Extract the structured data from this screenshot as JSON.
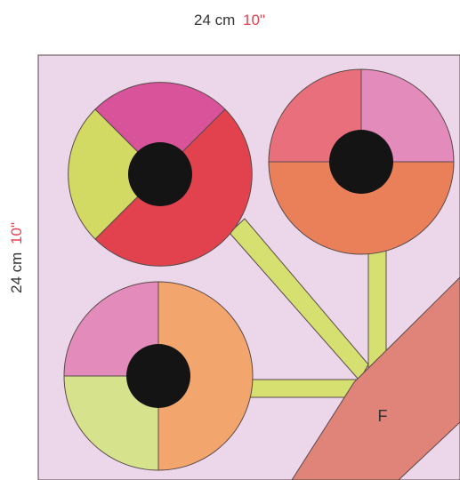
{
  "dimensions": {
    "top": {
      "metric": "24 cm",
      "imperial": "10\""
    },
    "left": {
      "metric": "24 cm",
      "imperial": "10\""
    }
  },
  "shape_label": "F",
  "colors": {
    "background": "#ecd7ea",
    "outline": "#5a4a4a",
    "stem": "#d6e071",
    "band": "#e08378",
    "center": "#141414",
    "magenta": "#d9539a",
    "red": "#e2424e",
    "lime": "#d3da63",
    "salmon": "#ea6f7c",
    "pink": "#e38bbb",
    "orange": "#ea8059",
    "peach": "#f2a66d",
    "pale_green": "#d6e28c"
  }
}
